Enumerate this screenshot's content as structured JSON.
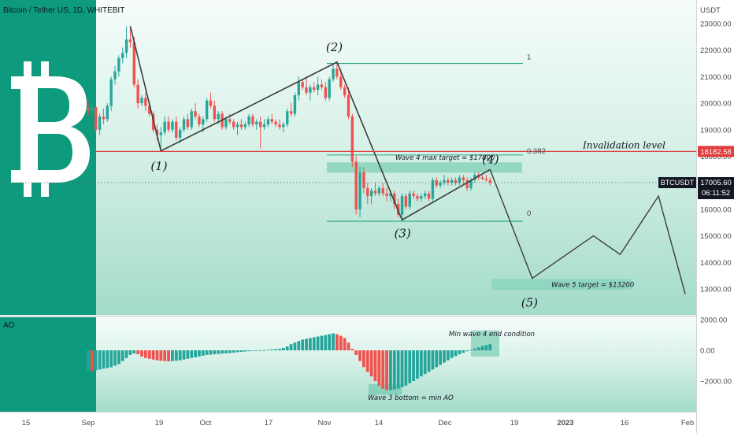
{
  "header": {
    "symbol_title": "Bitcoin / Tether US, 1D, WHITEBIT",
    "currency_label": "USDT"
  },
  "colors": {
    "up": "#26a69a",
    "down": "#ef5350",
    "green_panel": "#0e9a7c",
    "invalidation": "#e03c3c",
    "wave_line": "#3d3d3d",
    "fib": "#27a683",
    "bg_top": "#f3fbf8",
    "bg_bottom": "#a6dccb"
  },
  "logo": {
    "icon": "bitcoin-logo-icon"
  },
  "price_axis": {
    "ticks": [
      13000,
      14000,
      15000,
      16000,
      17000,
      18000,
      19000,
      20000,
      21000,
      22000,
      23000
    ],
    "tick_labels": [
      "13000.00",
      "14000.00",
      "15000.00",
      "16000.00",
      "17000.00",
      "18000.00",
      "19000.00",
      "20000.00",
      "21000.00",
      "22000.00",
      "23000.00"
    ],
    "range": [
      12500,
      23500
    ]
  },
  "ao_axis": {
    "ticks": [
      2000,
      0,
      -2000
    ],
    "tick_labels": [
      "2000.00",
      "0.00",
      "−2000.00"
    ],
    "range": [
      -3000,
      2500
    ],
    "panel_label": "AO"
  },
  "time_axis": {
    "labels": [
      "15",
      "Sep",
      "19",
      "Oct",
      "17",
      "Nov",
      "14",
      "Dec",
      "19",
      "2023",
      "16",
      "Feb"
    ],
    "bold_index": 9
  },
  "badges": {
    "invalidation_price": "18182.58",
    "ticker": "BTCUSDT",
    "last_price": "17005.60",
    "countdown": "06:11:52"
  },
  "annotations": {
    "invalidation": "Invalidation level",
    "wave4_target": "Wave 4 max target = $17800",
    "wave5_target": "Wave 5 target = $13200",
    "fib_1": "1",
    "fib_0382": "0.382",
    "fib_0": "0",
    "w1": "(1)",
    "w2": "(2)",
    "w3": "(3)",
    "w4": "(4)",
    "w5": "(5)",
    "min_wave4": "Min wave 4 end condition",
    "wave3_bottom": "Wave 3 bottom = min AO"
  },
  "chart_data": {
    "type": "candlestick",
    "title": "Bitcoin / Tether US, 1D, WHITEBIT",
    "x_axis_labels": [
      "15",
      "Sep",
      "19",
      "Oct",
      "17",
      "Nov",
      "14",
      "Dec",
      "19",
      "2023",
      "16",
      "Feb"
    ],
    "y_range": [
      12500,
      23500
    ],
    "levels": {
      "invalidation": 18182.58,
      "last_price": 17005.6,
      "fib_1": 21500,
      "fib_0382": 18050,
      "fib_0": 15550,
      "wave4_target": 17800,
      "wave5_target": 13200
    },
    "anchor_days": {
      "Sep": 0,
      "19": 18,
      "Oct": 30,
      "17": 46,
      "Nov": 61,
      "14": 74,
      "Dec": 91,
      "19b": 109,
      "2023": 122,
      "16b": 137,
      "Feb": 153
    },
    "wave_path": [
      {
        "day": 11,
        "price": 22900
      },
      {
        "day": 19,
        "price": 18200
      },
      {
        "day": 65,
        "price": 21550
      },
      {
        "day": 82,
        "price": 15600
      },
      {
        "day": 105,
        "price": 17500
      }
    ],
    "projection_path": [
      {
        "day": 105,
        "price": 17500
      },
      {
        "day": 116,
        "price": 13400
      },
      {
        "day": 132,
        "price": 15000
      },
      {
        "day": 139,
        "price": 14300
      },
      {
        "day": 149,
        "price": 16500
      },
      {
        "day": 156,
        "price": 12800
      }
    ],
    "candles": [
      {
        "day": 0,
        "o": 19800,
        "h": 20100,
        "l": 19500,
        "c": 19700
      },
      {
        "day": 1,
        "o": 19700,
        "h": 20000,
        "l": 19600,
        "c": 19850
      },
      {
        "day": 2,
        "o": 19850,
        "h": 19900,
        "l": 18900,
        "c": 19000
      },
      {
        "day": 3,
        "o": 19000,
        "h": 19600,
        "l": 18800,
        "c": 19500
      },
      {
        "day": 4,
        "o": 19500,
        "h": 19800,
        "l": 19200,
        "c": 19400
      },
      {
        "day": 5,
        "o": 19400,
        "h": 20000,
        "l": 19300,
        "c": 19900
      },
      {
        "day": 6,
        "o": 19900,
        "h": 21000,
        "l": 19700,
        "c": 20900
      },
      {
        "day": 7,
        "o": 20900,
        "h": 21400,
        "l": 20700,
        "c": 21200
      },
      {
        "day": 8,
        "o": 21200,
        "h": 21800,
        "l": 21000,
        "c": 21700
      },
      {
        "day": 9,
        "o": 21700,
        "h": 22100,
        "l": 21500,
        "c": 21900
      },
      {
        "day": 10,
        "o": 21900,
        "h": 22900,
        "l": 21700,
        "c": 22400
      },
      {
        "day": 11,
        "o": 22400,
        "h": 22800,
        "l": 22100,
        "c": 22300
      },
      {
        "day": 12,
        "o": 22300,
        "h": 22500,
        "l": 20600,
        "c": 20700
      },
      {
        "day": 13,
        "o": 20700,
        "h": 20900,
        "l": 19800,
        "c": 20000
      },
      {
        "day": 14,
        "o": 20000,
        "h": 20300,
        "l": 19900,
        "c": 20200
      },
      {
        "day": 15,
        "o": 20200,
        "h": 20400,
        "l": 19700,
        "c": 19900
      },
      {
        "day": 16,
        "o": 19900,
        "h": 20000,
        "l": 19500,
        "c": 19600
      },
      {
        "day": 17,
        "o": 19600,
        "h": 19700,
        "l": 18900,
        "c": 19000
      },
      {
        "day": 18,
        "o": 19000,
        "h": 19200,
        "l": 18600,
        "c": 18800
      },
      {
        "day": 19,
        "o": 18800,
        "h": 19100,
        "l": 18200,
        "c": 18900
      },
      {
        "day": 20,
        "o": 18900,
        "h": 19500,
        "l": 18800,
        "c": 19300
      },
      {
        "day": 21,
        "o": 19300,
        "h": 19500,
        "l": 18900,
        "c": 19000
      },
      {
        "day": 22,
        "o": 19000,
        "h": 19400,
        "l": 18900,
        "c": 19300
      },
      {
        "day": 23,
        "o": 19300,
        "h": 19500,
        "l": 18600,
        "c": 18700
      },
      {
        "day": 24,
        "o": 18700,
        "h": 19100,
        "l": 18500,
        "c": 19000
      },
      {
        "day": 25,
        "o": 19000,
        "h": 19500,
        "l": 18900,
        "c": 19400
      },
      {
        "day": 26,
        "o": 19400,
        "h": 19600,
        "l": 19000,
        "c": 19100
      },
      {
        "day": 27,
        "o": 19100,
        "h": 19800,
        "l": 19000,
        "c": 19700
      },
      {
        "day": 28,
        "o": 19700,
        "h": 20000,
        "l": 19400,
        "c": 19500
      },
      {
        "day": 29,
        "o": 19500,
        "h": 19600,
        "l": 19100,
        "c": 19200
      },
      {
        "day": 30,
        "o": 19200,
        "h": 19500,
        "l": 18900,
        "c": 19400
      },
      {
        "day": 31,
        "o": 19400,
        "h": 20200,
        "l": 19300,
        "c": 20100
      },
      {
        "day": 32,
        "o": 20100,
        "h": 20400,
        "l": 19800,
        "c": 19900
      },
      {
        "day": 33,
        "o": 19900,
        "h": 20100,
        "l": 19300,
        "c": 19400
      },
      {
        "day": 34,
        "o": 19400,
        "h": 19700,
        "l": 19200,
        "c": 19600
      },
      {
        "day": 35,
        "o": 19600,
        "h": 19700,
        "l": 19000,
        "c": 19100
      },
      {
        "day": 36,
        "o": 19100,
        "h": 19500,
        "l": 19000,
        "c": 19400
      },
      {
        "day": 37,
        "o": 19400,
        "h": 19600,
        "l": 19200,
        "c": 19300
      },
      {
        "day": 38,
        "o": 19300,
        "h": 19400,
        "l": 19000,
        "c": 19100
      },
      {
        "day": 39,
        "o": 19100,
        "h": 19300,
        "l": 18800,
        "c": 19200
      },
      {
        "day": 40,
        "o": 19200,
        "h": 19400,
        "l": 19000,
        "c": 19100
      },
      {
        "day": 41,
        "o": 19100,
        "h": 19300,
        "l": 19000,
        "c": 19200
      },
      {
        "day": 42,
        "o": 19200,
        "h": 19600,
        "l": 19100,
        "c": 19500
      },
      {
        "day": 43,
        "o": 19500,
        "h": 19600,
        "l": 19100,
        "c": 19200
      },
      {
        "day": 44,
        "o": 19200,
        "h": 19400,
        "l": 19000,
        "c": 19300
      },
      {
        "day": 45,
        "o": 19300,
        "h": 19500,
        "l": 18300,
        "c": 19100
      },
      {
        "day": 46,
        "o": 19100,
        "h": 19400,
        "l": 19000,
        "c": 19200
      },
      {
        "day": 47,
        "o": 19200,
        "h": 19500,
        "l": 19100,
        "c": 19400
      },
      {
        "day": 48,
        "o": 19400,
        "h": 19600,
        "l": 19200,
        "c": 19300
      },
      {
        "day": 49,
        "o": 19300,
        "h": 19400,
        "l": 19100,
        "c": 19200
      },
      {
        "day": 50,
        "o": 19200,
        "h": 19400,
        "l": 19000,
        "c": 19100
      },
      {
        "day": 51,
        "o": 19100,
        "h": 19300,
        "l": 18900,
        "c": 19200
      },
      {
        "day": 52,
        "o": 19200,
        "h": 19800,
        "l": 19100,
        "c": 19700
      },
      {
        "day": 53,
        "o": 19700,
        "h": 20000,
        "l": 19500,
        "c": 19600
      },
      {
        "day": 54,
        "o": 19600,
        "h": 20400,
        "l": 19500,
        "c": 20300
      },
      {
        "day": 55,
        "o": 20300,
        "h": 21000,
        "l": 20100,
        "c": 20800
      },
      {
        "day": 56,
        "o": 20800,
        "h": 20900,
        "l": 20500,
        "c": 20600
      },
      {
        "day": 57,
        "o": 20600,
        "h": 21000,
        "l": 20300,
        "c": 20400
      },
      {
        "day": 58,
        "o": 20400,
        "h": 20700,
        "l": 20100,
        "c": 20600
      },
      {
        "day": 59,
        "o": 20600,
        "h": 20800,
        "l": 20400,
        "c": 20500
      },
      {
        "day": 60,
        "o": 20500,
        "h": 21000,
        "l": 20300,
        "c": 20700
      },
      {
        "day": 61,
        "o": 20700,
        "h": 20900,
        "l": 20500,
        "c": 20600
      },
      {
        "day": 62,
        "o": 20600,
        "h": 20800,
        "l": 20100,
        "c": 20200
      },
      {
        "day": 63,
        "o": 20200,
        "h": 21000,
        "l": 20100,
        "c": 20900
      },
      {
        "day": 64,
        "o": 20900,
        "h": 21500,
        "l": 20800,
        "c": 21300
      },
      {
        "day": 65,
        "o": 21300,
        "h": 21500,
        "l": 20900,
        "c": 21000
      },
      {
        "day": 66,
        "o": 21000,
        "h": 21300,
        "l": 20500,
        "c": 20600
      },
      {
        "day": 67,
        "o": 20600,
        "h": 20700,
        "l": 20200,
        "c": 20300
      },
      {
        "day": 68,
        "o": 20300,
        "h": 20600,
        "l": 19400,
        "c": 19500
      },
      {
        "day": 69,
        "o": 19500,
        "h": 19600,
        "l": 17600,
        "c": 17800
      },
      {
        "day": 70,
        "o": 17800,
        "h": 18000,
        "l": 15800,
        "c": 16000
      },
      {
        "day": 71,
        "o": 16000,
        "h": 17600,
        "l": 15700,
        "c": 17400
      },
      {
        "day": 72,
        "o": 17400,
        "h": 17600,
        "l": 16600,
        "c": 16800
      },
      {
        "day": 73,
        "o": 16800,
        "h": 17000,
        "l": 16200,
        "c": 16500
      },
      {
        "day": 74,
        "o": 16500,
        "h": 16800,
        "l": 16200,
        "c": 16700
      },
      {
        "day": 75,
        "o": 16700,
        "h": 17000,
        "l": 16500,
        "c": 16600
      },
      {
        "day": 76,
        "o": 16600,
        "h": 16900,
        "l": 16500,
        "c": 16800
      },
      {
        "day": 77,
        "o": 16800,
        "h": 17000,
        "l": 16500,
        "c": 16600
      },
      {
        "day": 78,
        "o": 16600,
        "h": 16800,
        "l": 16300,
        "c": 16500
      },
      {
        "day": 79,
        "o": 16500,
        "h": 16700,
        "l": 16300,
        "c": 16600
      },
      {
        "day": 80,
        "o": 16600,
        "h": 16700,
        "l": 16000,
        "c": 16200
      },
      {
        "day": 81,
        "o": 16200,
        "h": 16400,
        "l": 15700,
        "c": 15800
      },
      {
        "day": 82,
        "o": 15800,
        "h": 16600,
        "l": 15600,
        "c": 16500
      },
      {
        "day": 83,
        "o": 16500,
        "h": 16600,
        "l": 16000,
        "c": 16100
      },
      {
        "day": 84,
        "o": 16100,
        "h": 16700,
        "l": 16000,
        "c": 16600
      },
      {
        "day": 85,
        "o": 16600,
        "h": 16700,
        "l": 16400,
        "c": 16500
      },
      {
        "day": 86,
        "o": 16500,
        "h": 16600,
        "l": 16300,
        "c": 16400
      },
      {
        "day": 87,
        "o": 16400,
        "h": 16600,
        "l": 16300,
        "c": 16500
      },
      {
        "day": 88,
        "o": 16500,
        "h": 16700,
        "l": 16400,
        "c": 16600
      },
      {
        "day": 89,
        "o": 16600,
        "h": 16700,
        "l": 16300,
        "c": 16400
      },
      {
        "day": 90,
        "o": 16400,
        "h": 17200,
        "l": 16300,
        "c": 17100
      },
      {
        "day": 91,
        "o": 17100,
        "h": 17200,
        "l": 16800,
        "c": 16900
      },
      {
        "day": 92,
        "o": 16900,
        "h": 17100,
        "l": 16800,
        "c": 17000
      },
      {
        "day": 93,
        "o": 17000,
        "h": 17300,
        "l": 16900,
        "c": 17100
      },
      {
        "day": 94,
        "o": 17100,
        "h": 17200,
        "l": 16900,
        "c": 17000
      },
      {
        "day": 95,
        "o": 17000,
        "h": 17200,
        "l": 16900,
        "c": 17100
      },
      {
        "day": 96,
        "o": 17100,
        "h": 17200,
        "l": 16900,
        "c": 17000
      },
      {
        "day": 97,
        "o": 17000,
        "h": 17300,
        "l": 16900,
        "c": 17200
      },
      {
        "day": 98,
        "o": 17200,
        "h": 17300,
        "l": 16900,
        "c": 17100
      },
      {
        "day": 99,
        "o": 17100,
        "h": 17200,
        "l": 16700,
        "c": 16800
      },
      {
        "day": 100,
        "o": 16800,
        "h": 17200,
        "l": 16700,
        "c": 17100
      },
      {
        "day": 101,
        "o": 17100,
        "h": 17400,
        "l": 17000,
        "c": 17300
      },
      {
        "day": 102,
        "o": 17300,
        "h": 17400,
        "l": 17100,
        "c": 17200
      },
      {
        "day": 103,
        "o": 17200,
        "h": 17300,
        "l": 17100,
        "c": 17150
      },
      {
        "day": 104,
        "o": 17150,
        "h": 17300,
        "l": 17050,
        "c": 17100
      },
      {
        "day": 105,
        "o": 17100,
        "h": 17200,
        "l": 16900,
        "c": 17005
      }
    ],
    "ao": [
      -1300,
      -1350,
      -1300,
      -1250,
      -1200,
      -1150,
      -1100,
      -1000,
      -900,
      -700,
      -500,
      -300,
      -200,
      -250,
      -400,
      -500,
      -550,
      -600,
      -650,
      -680,
      -700,
      -720,
      -700,
      -680,
      -650,
      -600,
      -550,
      -500,
      -450,
      -400,
      -350,
      -300,
      -280,
      -250,
      -230,
      -210,
      -200,
      -180,
      -150,
      -120,
      -100,
      -80,
      -60,
      -40,
      -20,
      0,
      20,
      40,
      60,
      80,
      100,
      150,
      250,
      400,
      500,
      600,
      700,
      750,
      800,
      850,
      900,
      950,
      1000,
      1050,
      1100,
      1050,
      950,
      800,
      500,
      100,
      -300,
      -700,
      -1100,
      -1400,
      -1700,
      -2000,
      -2300,
      -2500,
      -2600,
      -2600,
      -2550,
      -2500,
      -2400,
      -2300,
      -2150,
      -2000,
      -1850,
      -1700,
      -1550,
      -1400,
      -1250,
      -1100,
      -950,
      -800,
      -650,
      -500,
      -380,
      -260,
      -160,
      -60,
      30,
      120,
      200,
      280,
      340,
      400
    ],
    "ao_first_day": 0
  }
}
